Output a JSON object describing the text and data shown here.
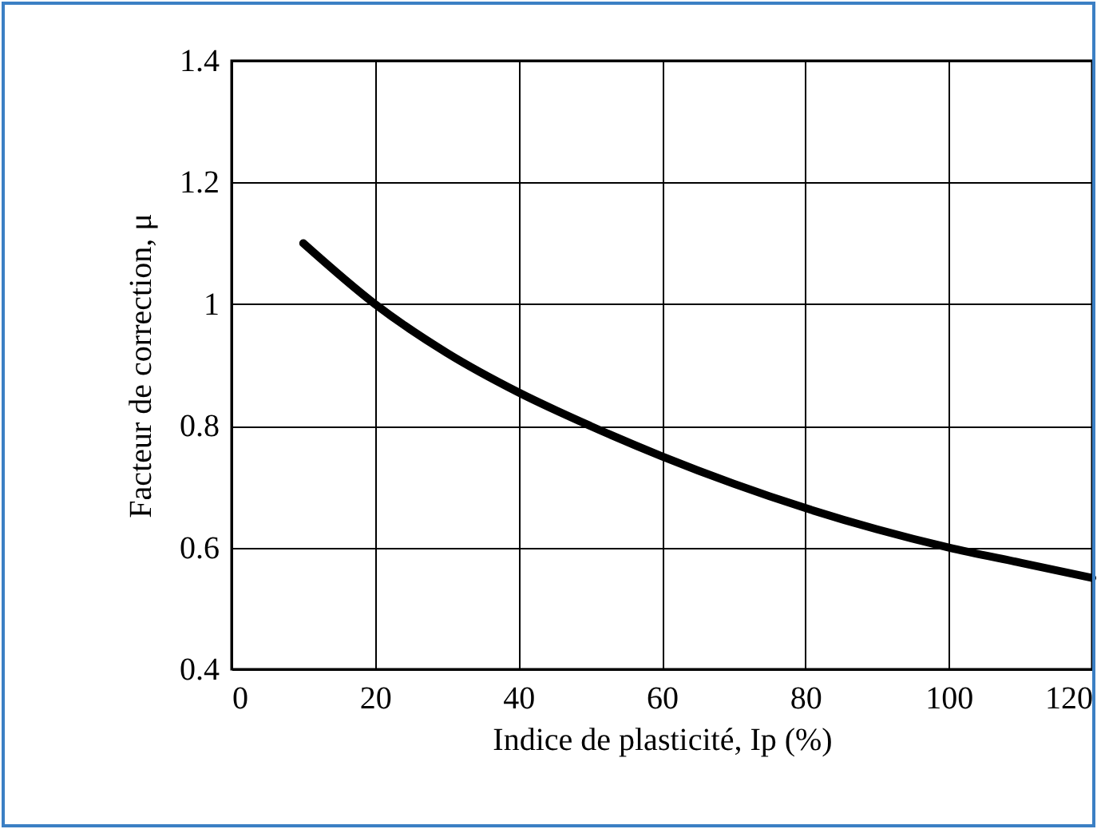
{
  "chart_data": {
    "type": "line",
    "xlabel": "Indice de plasticité, Ip (%)",
    "ylabel": "Facteur de correction, μ",
    "x": [
      10,
      20,
      30,
      40,
      50,
      60,
      70,
      80,
      90,
      100,
      110,
      120
    ],
    "series": [
      {
        "color": "#000000",
        "values": [
          1.1,
          1.0,
          0.92,
          0.855,
          0.8,
          0.75,
          0.705,
          0.665,
          0.63,
          0.6,
          0.575,
          0.55
        ]
      }
    ],
    "xlim": [
      0,
      120
    ],
    "xticks": [
      0,
      20,
      40,
      60,
      80,
      100,
      120
    ],
    "ylim": [
      0.4,
      1.4
    ],
    "yticks": [
      0.4,
      0.6,
      0.8,
      {
        "value": 1,
        "label": "1"
      },
      1.2,
      1.4
    ],
    "grid": true,
    "marker": "none",
    "line_style": "solid"
  }
}
